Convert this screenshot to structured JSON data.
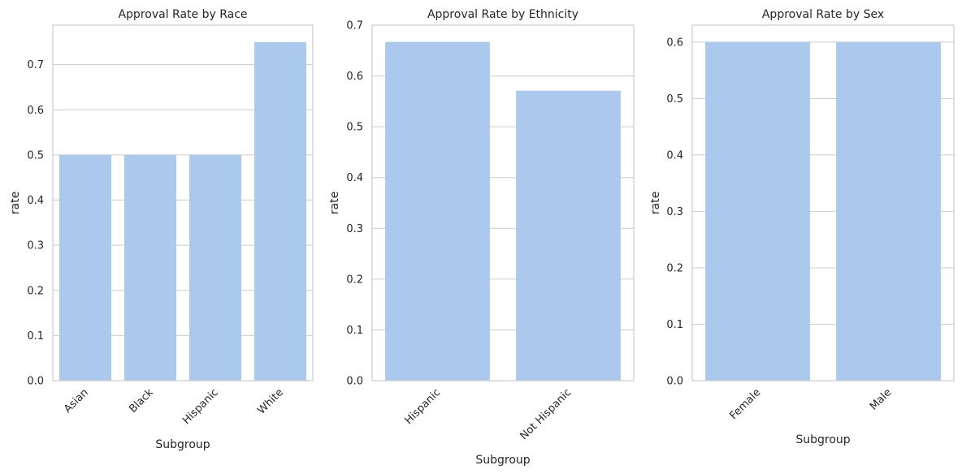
{
  "accent": "#abc9ec",
  "chart_data": [
    {
      "type": "bar",
      "title": "Approval Rate by Race",
      "xlabel": "Subgroup",
      "ylabel": "rate",
      "categories": [
        "Asian",
        "Black",
        "Hispanic",
        "White"
      ],
      "values": [
        0.5,
        0.5,
        0.5,
        0.75
      ],
      "ylim": [
        0,
        0.7875
      ],
      "yticks": [
        "0.0",
        "0.1",
        "0.2",
        "0.3",
        "0.4",
        "0.5",
        "0.6",
        "0.7"
      ],
      "grid": true
    },
    {
      "type": "bar",
      "title": "Approval Rate by Ethnicity",
      "xlabel": "Subgroup",
      "ylabel": "rate",
      "categories": [
        "Hispanic",
        "Not Hispanic"
      ],
      "values": [
        0.667,
        0.571
      ],
      "ylim": [
        0,
        0.7
      ],
      "yticks": [
        "0.0",
        "0.1",
        "0.2",
        "0.3",
        "0.4",
        "0.5",
        "0.6",
        "0.7"
      ],
      "grid": true
    },
    {
      "type": "bar",
      "title": "Approval Rate by Sex",
      "xlabel": "Subgroup",
      "ylabel": "rate",
      "categories": [
        "Female",
        "Male"
      ],
      "values": [
        0.6,
        0.6
      ],
      "ylim": [
        0,
        0.63
      ],
      "yticks": [
        "0.0",
        "0.1",
        "0.2",
        "0.3",
        "0.4",
        "0.5",
        "0.6"
      ],
      "grid": true
    }
  ]
}
